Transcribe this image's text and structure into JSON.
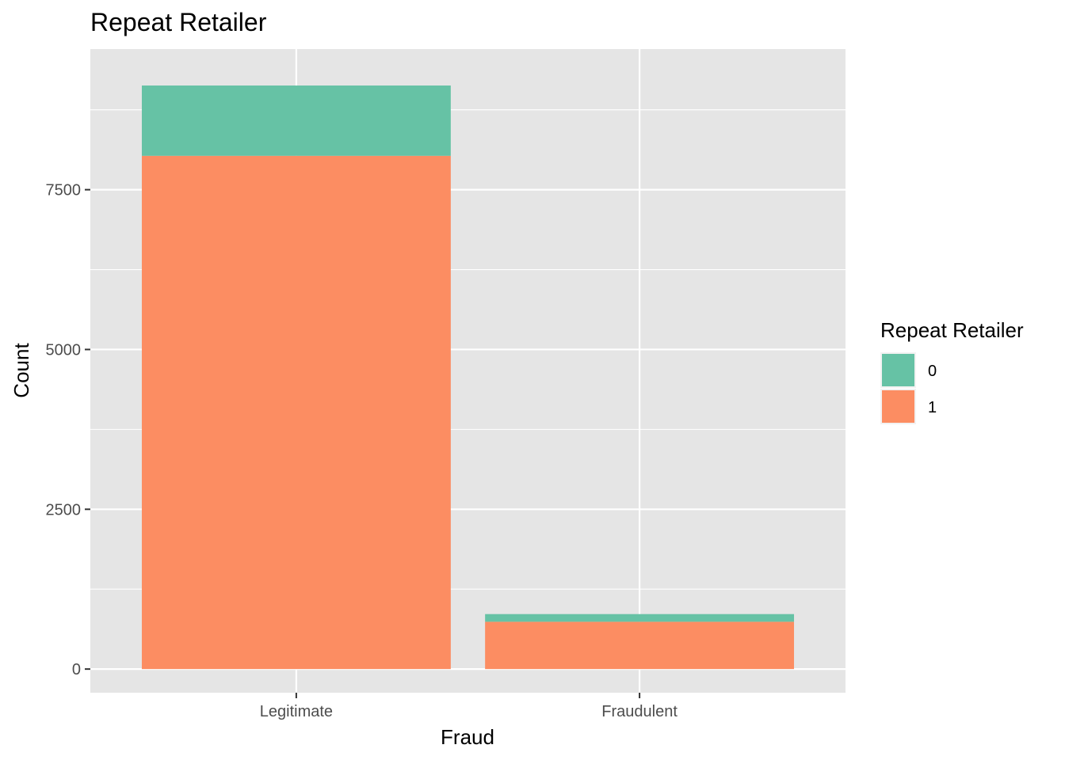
{
  "chart_data": {
    "type": "bar",
    "stacked": true,
    "title": "Repeat Retailer",
    "xlabel": "Fraud",
    "ylabel": "Count",
    "categories": [
      "Legitimate",
      "Fraudulent"
    ],
    "series": [
      {
        "name": "1",
        "values": [
          8030,
          740
        ],
        "color": "#FC8D62"
      },
      {
        "name": "0",
        "values": [
          1100,
          120
        ],
        "color": "#66C2A5"
      }
    ],
    "ylim": [
      -370,
      9700
    ],
    "yticks": [
      0,
      2500,
      5000,
      7500
    ],
    "ytick_labels": [
      "0",
      "2500",
      "5000",
      "7500"
    ],
    "grid": true,
    "legend": {
      "title": "Repeat Retailer",
      "position": "right",
      "entries": [
        {
          "label": "0",
          "color": "#66C2A5"
        },
        {
          "label": "1",
          "color": "#FC8D62"
        }
      ]
    },
    "panel_background": "#E5E5E5",
    "grid_color": "#FFFFFF"
  }
}
